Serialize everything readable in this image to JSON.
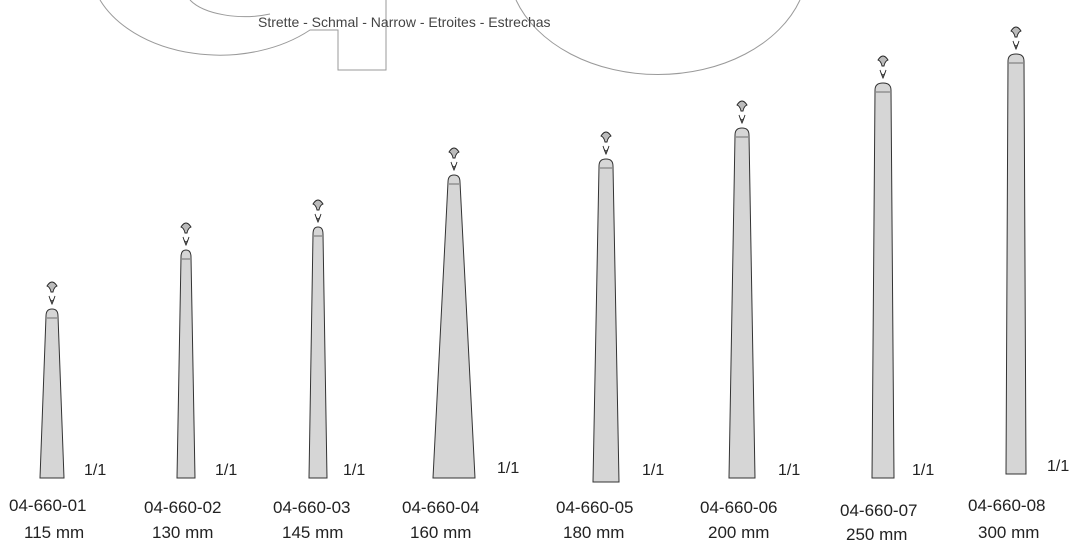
{
  "header": {
    "subtitle": "Strette - Schmal - Narrow - Etroites - Estrechas"
  },
  "scale_label": "1/1",
  "items": [
    {
      "code": "04-660-01",
      "size": "115 mm"
    },
    {
      "code": "04-660-02",
      "size": "130 mm"
    },
    {
      "code": "04-660-03",
      "size": "145 mm"
    },
    {
      "code": "04-660-04",
      "size": "160 mm"
    },
    {
      "code": "04-660-05",
      "size": "180 mm"
    },
    {
      "code": "04-660-06",
      "size": "200 mm"
    },
    {
      "code": "04-660-07",
      "size": "250 mm"
    },
    {
      "code": "04-660-08",
      "size": "300 mm"
    }
  ]
}
